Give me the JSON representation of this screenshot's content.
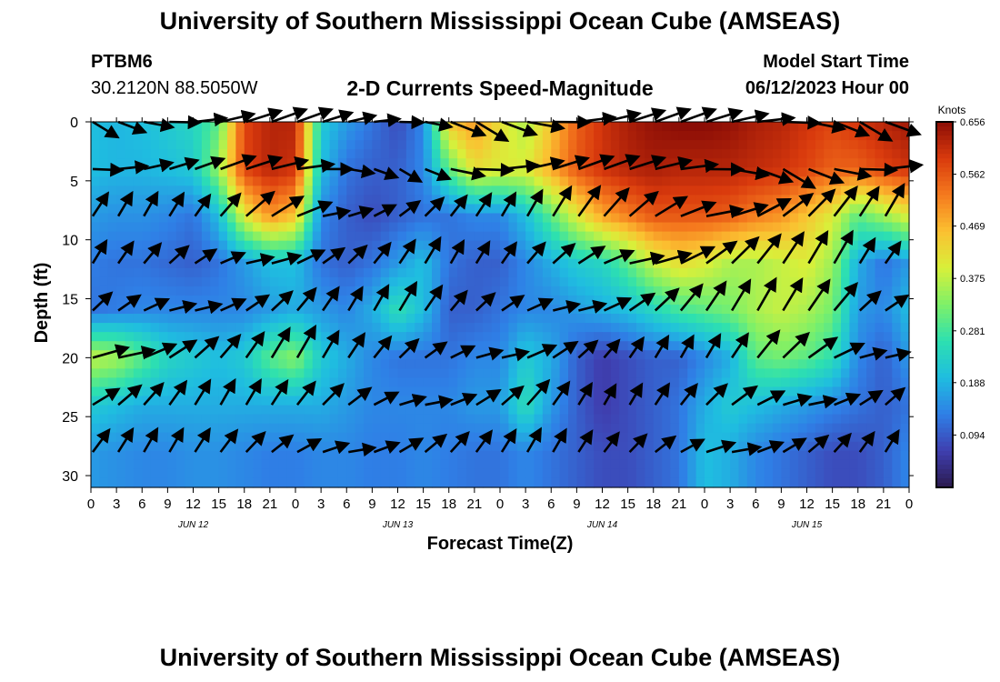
{
  "header": {
    "title": "University of Southern Mississippi Ocean Cube (AMSEAS)",
    "station_name": "PTBM6",
    "station_coords": "30.2120N  88.5050W",
    "plot_title": "2-D Currents Speed-Magnitude",
    "model_start_label": "Model Start Time",
    "model_start_value": "06/12/2023 Hour 00"
  },
  "footer": {
    "title": "University of Southern Mississippi Ocean Cube (AMSEAS)"
  },
  "chart_data": {
    "type": "heatmap",
    "xlabel": "Forecast Time(Z)",
    "ylabel": "Depth (ft)",
    "x_range_hours": [
      0,
      96
    ],
    "y_range_ft": [
      0,
      31
    ],
    "y_inverted": true,
    "x_tick_labels": [
      "0",
      "3",
      "6",
      "9",
      "12",
      "15",
      "18",
      "21",
      "0",
      "3",
      "6",
      "9",
      "12",
      "15",
      "18",
      "21",
      "0",
      "3",
      "6",
      "9",
      "12",
      "15",
      "18",
      "21",
      "0",
      "3",
      "6",
      "9",
      "12",
      "15",
      "18",
      "21",
      "0"
    ],
    "y_ticks": [
      0,
      5,
      10,
      15,
      20,
      25,
      30
    ],
    "day_labels": [
      {
        "label": "JUN 12",
        "hour": 12
      },
      {
        "label": "JUN 13",
        "hour": 36
      },
      {
        "label": "JUN 14",
        "hour": 60
      },
      {
        "label": "JUN 15",
        "hour": 84
      }
    ],
    "colorbar": {
      "unit": "Knots",
      "ticks": [
        0.094,
        0.188,
        0.281,
        0.375,
        0.469,
        0.562,
        0.656
      ],
      "range": [
        0.0,
        0.656
      ],
      "colors": [
        "#2b1a4e",
        "#3f3fb0",
        "#2f7fe6",
        "#1fbde0",
        "#2de0b0",
        "#7ef068",
        "#d8f03a",
        "#fbc031",
        "#f57a1e",
        "#d93a0d",
        "#8b0d06"
      ]
    },
    "depth_levels_ft": [
      0,
      4,
      8,
      12,
      16,
      20,
      24,
      28
    ],
    "time_step_hours": 3,
    "speed_knots": [
      [
        0.2,
        0.19,
        0.2,
        0.22,
        0.24,
        0.3,
        0.58,
        0.62,
        0.62,
        0.22,
        0.16,
        0.12,
        0.08,
        0.14,
        0.45,
        0.5,
        0.42,
        0.36,
        0.45,
        0.55,
        0.6,
        0.63,
        0.65,
        0.66,
        0.66,
        0.65,
        0.63,
        0.62,
        0.6,
        0.58,
        0.6,
        0.62,
        0.64
      ],
      [
        0.2,
        0.19,
        0.19,
        0.2,
        0.22,
        0.35,
        0.58,
        0.62,
        0.6,
        0.2,
        0.12,
        0.1,
        0.1,
        0.14,
        0.3,
        0.42,
        0.4,
        0.4,
        0.48,
        0.56,
        0.6,
        0.62,
        0.63,
        0.62,
        0.62,
        0.62,
        0.61,
        0.6,
        0.58,
        0.55,
        0.55,
        0.58,
        0.6
      ],
      [
        0.16,
        0.15,
        0.15,
        0.14,
        0.12,
        0.2,
        0.4,
        0.5,
        0.45,
        0.14,
        0.1,
        0.08,
        0.1,
        0.12,
        0.12,
        0.14,
        0.14,
        0.2,
        0.3,
        0.4,
        0.48,
        0.52,
        0.56,
        0.56,
        0.56,
        0.55,
        0.52,
        0.5,
        0.45,
        0.4,
        0.3,
        0.35,
        0.4
      ],
      [
        0.13,
        0.12,
        0.12,
        0.11,
        0.1,
        0.12,
        0.16,
        0.2,
        0.2,
        0.12,
        0.1,
        0.12,
        0.16,
        0.2,
        0.12,
        0.1,
        0.1,
        0.14,
        0.18,
        0.22,
        0.24,
        0.3,
        0.38,
        0.42,
        0.4,
        0.36,
        0.36,
        0.38,
        0.4,
        0.35,
        0.18,
        0.12,
        0.16
      ],
      [
        0.12,
        0.13,
        0.14,
        0.14,
        0.14,
        0.14,
        0.14,
        0.16,
        0.18,
        0.16,
        0.14,
        0.18,
        0.26,
        0.2,
        0.1,
        0.1,
        0.12,
        0.14,
        0.14,
        0.16,
        0.18,
        0.2,
        0.24,
        0.28,
        0.3,
        0.32,
        0.36,
        0.38,
        0.36,
        0.32,
        0.16,
        0.14,
        0.2
      ],
      [
        0.38,
        0.36,
        0.3,
        0.24,
        0.22,
        0.2,
        0.22,
        0.3,
        0.34,
        0.22,
        0.18,
        0.14,
        0.12,
        0.12,
        0.12,
        0.14,
        0.14,
        0.22,
        0.18,
        0.1,
        0.06,
        0.08,
        0.1,
        0.1,
        0.14,
        0.18,
        0.3,
        0.32,
        0.3,
        0.26,
        0.14,
        0.1,
        0.16
      ],
      [
        0.22,
        0.2,
        0.18,
        0.18,
        0.18,
        0.18,
        0.18,
        0.18,
        0.18,
        0.18,
        0.16,
        0.14,
        0.14,
        0.14,
        0.14,
        0.16,
        0.16,
        0.26,
        0.16,
        0.1,
        0.06,
        0.08,
        0.1,
        0.12,
        0.18,
        0.22,
        0.2,
        0.18,
        0.16,
        0.14,
        0.12,
        0.1,
        0.12
      ],
      [
        0.16,
        0.15,
        0.14,
        0.14,
        0.15,
        0.15,
        0.14,
        0.13,
        0.13,
        0.14,
        0.14,
        0.13,
        0.13,
        0.14,
        0.13,
        0.12,
        0.12,
        0.14,
        0.12,
        0.1,
        0.08,
        0.08,
        0.1,
        0.12,
        0.2,
        0.18,
        0.14,
        0.12,
        0.1,
        0.08,
        0.08,
        0.1,
        0.14
      ]
    ]
  }
}
